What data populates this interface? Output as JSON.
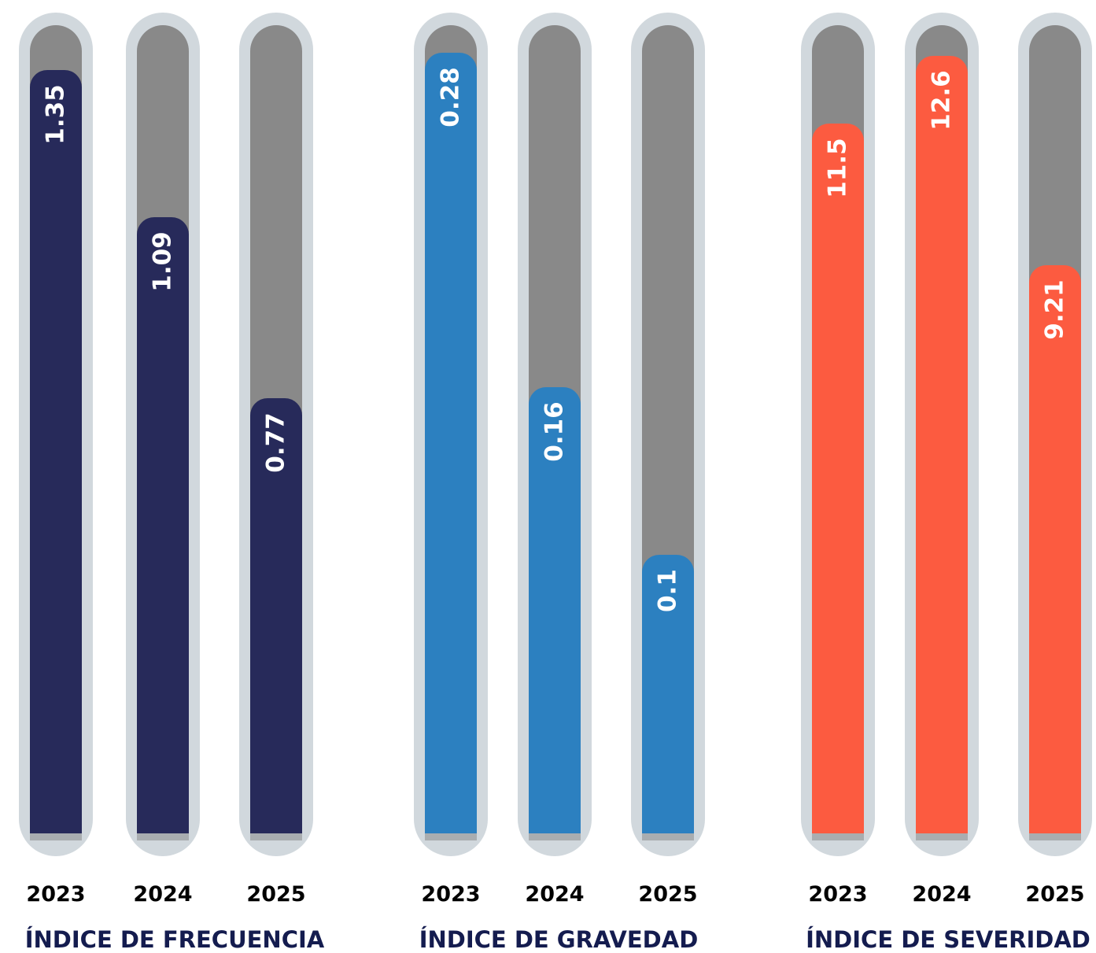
{
  "chart_data": [
    {
      "type": "bar",
      "title": "ÍNDICE DE FRECUENCIA",
      "categories": [
        "2023",
        "2024",
        "2025"
      ],
      "values": [
        1.35,
        1.09,
        0.77
      ],
      "value_labels": [
        "1.35",
        "1.09",
        "0.77"
      ],
      "ylim": [
        0,
        1.43
      ],
      "color": "#272a5a",
      "track_color": "#898989"
    },
    {
      "type": "bar",
      "title": "ÍNDICE DE GRAVEDAD",
      "categories": [
        "2023",
        "2024",
        "2025"
      ],
      "values": [
        0.28,
        0.16,
        0.1
      ],
      "value_labels": [
        "0.28",
        "0.16",
        "0.1"
      ],
      "ylim": [
        0,
        0.29
      ],
      "color": "#2c80c0",
      "track_color": "#898989"
    },
    {
      "type": "bar",
      "title": "ÍNDICE DE SEVERIDAD",
      "categories": [
        "2023",
        "2024",
        "2025"
      ],
      "values": [
        11.5,
        12.6,
        9.21
      ],
      "value_labels": [
        "11.5",
        "12.6",
        "9.21"
      ],
      "ylim": [
        0,
        13.1
      ],
      "color": "#fc5b40",
      "track_color": "#898989"
    }
  ]
}
